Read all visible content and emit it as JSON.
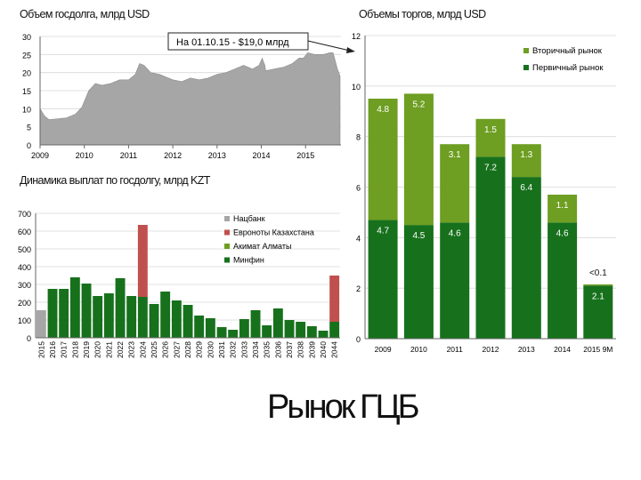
{
  "slide_title": "Рынок ГЦБ",
  "debt": {
    "title": "Объем госдолга, млрд USD",
    "annotation": "На 01.10.15 - $19,0 млрд"
  },
  "payments": {
    "title": "Динамика выплат по госдолгу, млрд KZT"
  },
  "volume": {
    "title": "Объемы торгов, млрд USD"
  },
  "colors": {
    "area": "#a6a6a6",
    "primary": "#17711c",
    "secondary": "#6e9e22",
    "natbank": "#a6a6a6",
    "eurobonds": "#c0504d",
    "akimat": "#6e9e22",
    "minfin": "#17711c"
  },
  "chart_data": [
    {
      "id": "debt",
      "type": "area",
      "title": "Объем госдолга, млрд USD",
      "x": [
        2009.0,
        2009.1,
        2009.2,
        2009.4,
        2009.6,
        2009.8,
        2009.95,
        2010.1,
        2010.25,
        2010.4,
        2010.6,
        2010.8,
        2011.0,
        2011.15,
        2011.25,
        2011.35,
        2011.5,
        2011.7,
        2011.9,
        2012.0,
        2012.2,
        2012.4,
        2012.6,
        2012.8,
        2013.0,
        2013.2,
        2013.4,
        2013.6,
        2013.8,
        2013.95,
        2014.02,
        2014.08,
        2014.1,
        2014.3,
        2014.5,
        2014.7,
        2014.85,
        2014.95,
        2015.05,
        2015.2,
        2015.4,
        2015.55,
        2015.62,
        2015.72,
        2015.78
      ],
      "y": [
        10.0,
        8.0,
        7.0,
        7.2,
        7.5,
        8.5,
        10.5,
        15.0,
        17.0,
        16.5,
        17.0,
        18.0,
        18.0,
        19.5,
        22.5,
        22.0,
        20.0,
        19.5,
        18.5,
        18.0,
        17.5,
        18.5,
        18.0,
        18.5,
        19.5,
        20.0,
        21.0,
        22.0,
        21.0,
        22.0,
        24.0,
        22.0,
        20.5,
        21.0,
        21.5,
        22.5,
        24.0,
        24.0,
        25.5,
        25.0,
        25.0,
        25.5,
        25.5,
        21.0,
        19.0
      ],
      "ylim": [
        0,
        30
      ],
      "yticks": [
        0,
        5,
        10,
        15,
        20,
        25,
        30
      ],
      "xticks": [
        2009,
        2010,
        2011,
        2012,
        2013,
        2014,
        2015
      ]
    },
    {
      "id": "payments",
      "type": "bar",
      "stacked": true,
      "title": "Динамика выплат по госдолгу, млрд KZT",
      "categories": [
        "2015",
        "2016",
        "2017",
        "2018",
        "2019",
        "2020",
        "2021",
        "2022",
        "2023",
        "2024",
        "2025",
        "2026",
        "2027",
        "2028",
        "2029",
        "2030",
        "2031",
        "2032",
        "2033",
        "2034",
        "2035",
        "2036",
        "2037",
        "2038",
        "2039",
        "2040",
        "2044"
      ],
      "ylim": [
        0,
        700
      ],
      "yticks": [
        0,
        100,
        200,
        300,
        400,
        500,
        600,
        700
      ],
      "legend_position": "right",
      "series": [
        {
          "name": "Нацбанк",
          "color": "#a6a6a6",
          "values": [
            155,
            0,
            0,
            0,
            0,
            0,
            0,
            0,
            0,
            0,
            0,
            0,
            0,
            0,
            0,
            0,
            0,
            0,
            0,
            0,
            0,
            0,
            0,
            0,
            0,
            0,
            0
          ]
        },
        {
          "name": "Минфин",
          "color": "#17711c",
          "values": [
            0,
            275,
            275,
            340,
            305,
            235,
            250,
            335,
            235,
            230,
            190,
            260,
            210,
            185,
            125,
            110,
            60,
            45,
            105,
            155,
            70,
            165,
            100,
            90,
            65,
            40,
            90
          ]
        },
        {
          "name": "Акимат Алматы",
          "color": "#6e9e22",
          "values": [
            0,
            0,
            0,
            0,
            0,
            0,
            0,
            0,
            0,
            0,
            0,
            0,
            0,
            0,
            0,
            0,
            0,
            0,
            0,
            0,
            0,
            0,
            0,
            0,
            0,
            0,
            0
          ]
        },
        {
          "name": "Евроноты Казахстана",
          "color": "#c0504d",
          "values": [
            0,
            0,
            0,
            0,
            0,
            0,
            0,
            0,
            0,
            405,
            0,
            0,
            0,
            0,
            0,
            0,
            0,
            0,
            0,
            0,
            0,
            0,
            0,
            0,
            0,
            0,
            260
          ]
        }
      ]
    },
    {
      "id": "volume",
      "type": "bar",
      "stacked": true,
      "title": "Объемы торгов, млрд USD",
      "categories": [
        "2009",
        "2010",
        "2011",
        "2012",
        "2013",
        "2014",
        "2015 9M"
      ],
      "ylim": [
        0,
        12
      ],
      "yticks": [
        0,
        2,
        4,
        6,
        8,
        10,
        12
      ],
      "legend_position": "top-right",
      "series": [
        {
          "name": "Первичный рынок",
          "color": "#17711c",
          "values": [
            4.7,
            4.5,
            4.6,
            7.2,
            6.4,
            4.6,
            2.1
          ],
          "labels": [
            "4.7",
            "4.5",
            "4.6",
            "7.2",
            "6.4",
            "4.6",
            "2.1"
          ]
        },
        {
          "name": "Вторичный рынок",
          "color": "#6e9e22",
          "values": [
            4.8,
            5.2,
            3.1,
            1.5,
            1.3,
            1.1,
            0.05
          ],
          "labels": [
            "4.8",
            "5.2",
            "3.1",
            "1.5",
            "1.3",
            "1.1",
            "<0.1"
          ]
        }
      ]
    }
  ]
}
